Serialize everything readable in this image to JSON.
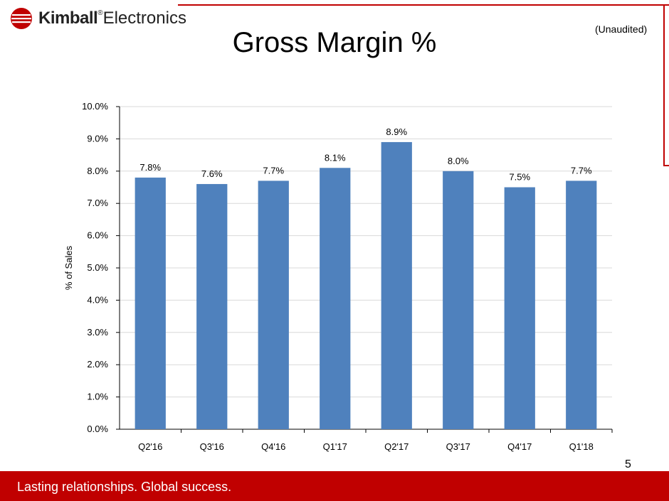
{
  "brand": {
    "name": "Kimball",
    "trademark": "®",
    "division": "Electronics",
    "accent_color": "#c00000"
  },
  "slide": {
    "title": "Gross Margin %",
    "note": "(Unaudited)",
    "page_number": "5",
    "footer_tagline": "Lasting relationships. Global success."
  },
  "chart_data": {
    "type": "bar",
    "title": "",
    "xlabel": "",
    "ylabel": "% of Sales",
    "categories": [
      "Q2'16",
      "Q3'16",
      "Q4'16",
      "Q1'17",
      "Q2'17",
      "Q3'17",
      "Q4'17",
      "Q1'18"
    ],
    "values": [
      7.8,
      7.6,
      7.7,
      8.1,
      8.9,
      8.0,
      7.5,
      7.7
    ],
    "data_labels": [
      "7.8%",
      "7.6%",
      "7.7%",
      "8.1%",
      "8.9%",
      "8.0%",
      "7.5%",
      "7.7%"
    ],
    "ylim": [
      0,
      10
    ],
    "y_ticks": [
      0,
      1,
      2,
      3,
      4,
      5,
      6,
      7,
      8,
      9,
      10
    ],
    "y_tick_labels": [
      "0.0%",
      "1.0%",
      "2.0%",
      "3.0%",
      "4.0%",
      "5.0%",
      "6.0%",
      "7.0%",
      "8.0%",
      "9.0%",
      "10.0%"
    ],
    "grid": true,
    "legend": "none",
    "bar_color": "#4f81bd",
    "grid_color": "#d9d9d9"
  }
}
